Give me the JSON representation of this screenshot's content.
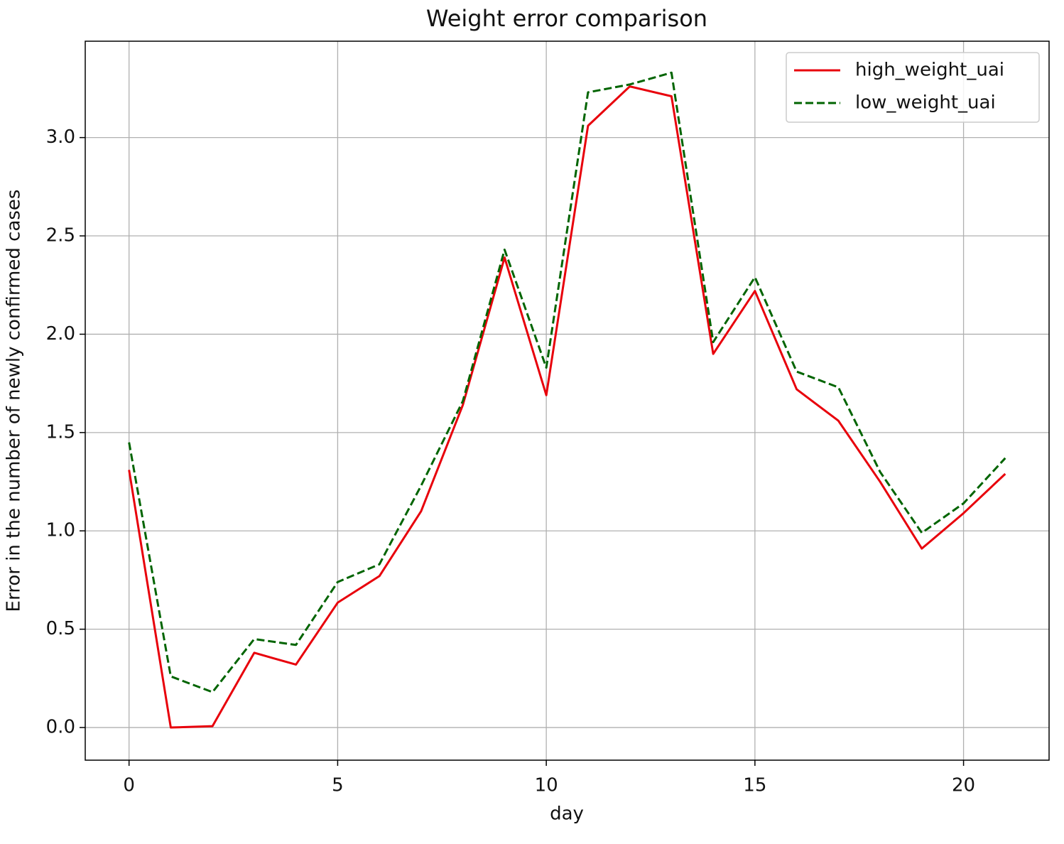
{
  "chart_data": {
    "type": "line",
    "title": "Weight error comparison",
    "xlabel": "day",
    "ylabel": "Error in the number of newly confirmed cases",
    "x": [
      0,
      1,
      2,
      3,
      4,
      5,
      6,
      7,
      8,
      9,
      10,
      11,
      12,
      13,
      14,
      15,
      16,
      17,
      18,
      19,
      20,
      21
    ],
    "series": [
      {
        "name": "high_weight_uai",
        "color": "#e8000b",
        "dash": "solid",
        "values": [
          1.31,
          0.0,
          0.007,
          0.38,
          0.32,
          0.635,
          0.77,
          1.1,
          1.64,
          2.39,
          1.69,
          3.06,
          3.26,
          3.21,
          1.9,
          2.22,
          1.72,
          1.56,
          1.25,
          0.91,
          1.09,
          1.29
        ]
      },
      {
        "name": "low_weight_uai",
        "color": "#006400",
        "dash": "dashed",
        "values": [
          1.45,
          0.26,
          0.18,
          0.45,
          0.42,
          0.74,
          0.83,
          1.23,
          1.66,
          2.43,
          1.83,
          3.23,
          3.27,
          3.33,
          1.96,
          2.29,
          1.81,
          1.73,
          1.3,
          0.99,
          1.14,
          1.37
        ]
      }
    ],
    "xlim": [
      -1.05,
      22.05
    ],
    "xticks": [
      0,
      5,
      10,
      15,
      20
    ],
    "ylim": [
      -0.166,
      3.49
    ],
    "yticks": [
      {
        "value": 0,
        "label": "0.0"
      },
      0.5,
      {
        "value": 1,
        "label": "1.0"
      },
      1.5,
      {
        "value": 2,
        "label": "2.0"
      },
      2.5,
      {
        "value": 3,
        "label": "3.0"
      }
    ],
    "grid": true,
    "legend": "upper right"
  }
}
